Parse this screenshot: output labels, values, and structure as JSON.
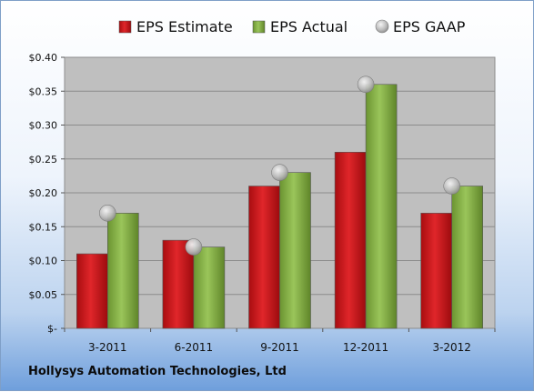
{
  "chart_data": {
    "type": "bar",
    "categories": [
      "3-2011",
      "6-2011",
      "9-2011",
      "12-2011",
      "3-2012"
    ],
    "series": [
      {
        "name": "EPS Estimate",
        "values": [
          0.11,
          0.13,
          0.21,
          0.26,
          0.17
        ],
        "color": "#d0161b",
        "mark": "bar"
      },
      {
        "name": "EPS Actual",
        "values": [
          0.17,
          0.12,
          0.23,
          0.36,
          0.21
        ],
        "color": "#8ab449",
        "mark": "bar"
      },
      {
        "name": "EPS GAAP",
        "values": [
          0.17,
          0.12,
          0.23,
          0.36,
          0.21
        ],
        "color": "#b8b8b8",
        "mark": "circle"
      }
    ],
    "yticks": [
      "$-",
      "$0.05",
      "$0.10",
      "$0.15",
      "$0.20",
      "$0.25",
      "$0.30",
      "$0.35",
      "$0.40"
    ],
    "ylim": [
      0,
      0.4
    ],
    "grid": true,
    "legend": "top"
  },
  "footer": "Hollysys Automation Technologies, Ltd"
}
